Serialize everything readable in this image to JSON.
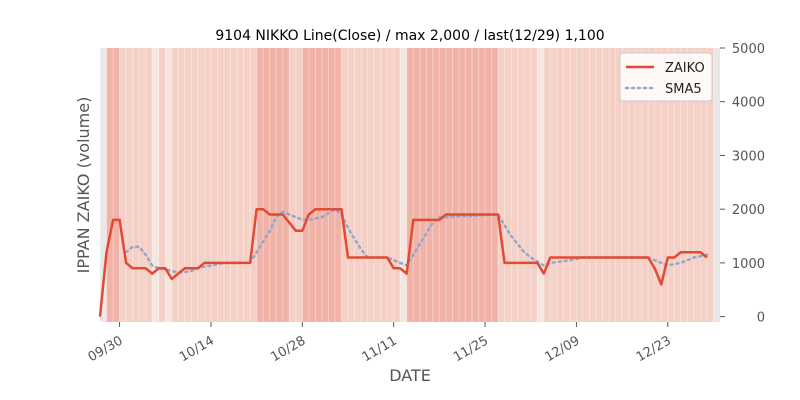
{
  "chart_data": {
    "type": "line",
    "title": "9104 NIKKO Line(Close) / max 2,000 / last(12/29) 1,100",
    "xlabel": "DATE",
    "ylabel": "IPPAN ZAIKO (volume)",
    "ylim": [
      -100,
      5000
    ],
    "yticks": [
      0,
      1000,
      2000,
      3000,
      4000,
      5000
    ],
    "x_start": "2019-09-27",
    "x_end": "2019-12-31",
    "xticks": [
      {
        "date": "2019-09-30",
        "label": "09/30"
      },
      {
        "date": "2019-10-14",
        "label": "10/14"
      },
      {
        "date": "2019-10-28",
        "label": "10/28"
      },
      {
        "date": "2019-11-11",
        "label": "11/11"
      },
      {
        "date": "2019-11-25",
        "label": "11/25"
      },
      {
        "date": "2019-12-09",
        "label": "12/09"
      },
      {
        "date": "2019-12-23",
        "label": "12/23"
      }
    ],
    "grid": false,
    "legend_position": "top-right",
    "series": [
      {
        "name": "ZAIKO",
        "style": "solid",
        "color": "#e24a33",
        "points": [
          [
            "2019-09-27",
            0
          ],
          [
            "2019-09-28",
            1200
          ],
          [
            "2019-09-29",
            1800
          ],
          [
            "2019-09-30",
            1800
          ],
          [
            "2019-10-01",
            1000
          ],
          [
            "2019-10-02",
            900
          ],
          [
            "2019-10-03",
            900
          ],
          [
            "2019-10-04",
            900
          ],
          [
            "2019-10-05",
            800
          ],
          [
            "2019-10-06",
            900
          ],
          [
            "2019-10-07",
            900
          ],
          [
            "2019-10-08",
            700
          ],
          [
            "2019-10-09",
            800
          ],
          [
            "2019-10-10",
            900
          ],
          [
            "2019-10-11",
            900
          ],
          [
            "2019-10-12",
            900
          ],
          [
            "2019-10-13",
            1000
          ],
          [
            "2019-10-20",
            1000
          ],
          [
            "2019-10-21",
            2000
          ],
          [
            "2019-10-22",
            2000
          ],
          [
            "2019-10-23",
            1900
          ],
          [
            "2019-10-25",
            1900
          ],
          [
            "2019-10-27",
            1600
          ],
          [
            "2019-10-28",
            1600
          ],
          [
            "2019-10-29",
            1900
          ],
          [
            "2019-10-30",
            2000
          ],
          [
            "2019-11-03",
            2000
          ],
          [
            "2019-11-04",
            1100
          ],
          [
            "2019-11-10",
            1100
          ],
          [
            "2019-11-11",
            900
          ],
          [
            "2019-11-12",
            900
          ],
          [
            "2019-11-13",
            800
          ],
          [
            "2019-11-14",
            1800
          ],
          [
            "2019-11-18",
            1800
          ],
          [
            "2019-11-19",
            1900
          ],
          [
            "2019-11-27",
            1900
          ],
          [
            "2019-11-28",
            1000
          ],
          [
            "2019-12-03",
            1000
          ],
          [
            "2019-12-04",
            800
          ],
          [
            "2019-12-05",
            1100
          ],
          [
            "2019-12-20",
            1100
          ],
          [
            "2019-12-21",
            900
          ],
          [
            "2019-12-22",
            600
          ],
          [
            "2019-12-23",
            1100
          ],
          [
            "2019-12-24",
            1100
          ],
          [
            "2019-12-25",
            1200
          ],
          [
            "2019-12-27",
            1200
          ],
          [
            "2019-12-28",
            1200
          ],
          [
            "2019-12-29",
            1100
          ]
        ]
      },
      {
        "name": "SMA5",
        "style": "dotted",
        "color": "#92a8cd",
        "points": [
          [
            "2019-10-01",
            1200
          ],
          [
            "2019-10-02",
            1300
          ],
          [
            "2019-10-03",
            1300
          ],
          [
            "2019-10-04",
            1150
          ],
          [
            "2019-10-05",
            950
          ],
          [
            "2019-10-06",
            900
          ],
          [
            "2019-10-07",
            880
          ],
          [
            "2019-10-08",
            850
          ],
          [
            "2019-10-09",
            820
          ],
          [
            "2019-10-10",
            830
          ],
          [
            "2019-10-11",
            850
          ],
          [
            "2019-10-12",
            900
          ],
          [
            "2019-10-13",
            930
          ],
          [
            "2019-10-14",
            950
          ],
          [
            "2019-10-16",
            1000
          ],
          [
            "2019-10-20",
            1000
          ],
          [
            "2019-10-21",
            1200
          ],
          [
            "2019-10-22",
            1400
          ],
          [
            "2019-10-23",
            1600
          ],
          [
            "2019-10-24",
            1850
          ],
          [
            "2019-10-25",
            1950
          ],
          [
            "2019-10-26",
            1900
          ],
          [
            "2019-10-28",
            1800
          ],
          [
            "2019-10-29",
            1800
          ],
          [
            "2019-10-31",
            1850
          ],
          [
            "2019-11-02",
            2000
          ],
          [
            "2019-11-03",
            1900
          ],
          [
            "2019-11-04",
            1650
          ],
          [
            "2019-11-05",
            1450
          ],
          [
            "2019-11-06",
            1250
          ],
          [
            "2019-11-07",
            1100
          ],
          [
            "2019-11-10",
            1100
          ],
          [
            "2019-11-11",
            1050
          ],
          [
            "2019-11-12",
            1000
          ],
          [
            "2019-11-13",
            950
          ],
          [
            "2019-11-14",
            1150
          ],
          [
            "2019-11-15",
            1350
          ],
          [
            "2019-11-16",
            1550
          ],
          [
            "2019-11-17",
            1750
          ],
          [
            "2019-11-18",
            1850
          ],
          [
            "2019-11-19",
            1850
          ],
          [
            "2019-11-27",
            1900
          ],
          [
            "2019-11-28",
            1700
          ],
          [
            "2019-11-29",
            1500
          ],
          [
            "2019-11-30",
            1350
          ],
          [
            "2019-12-01",
            1200
          ],
          [
            "2019-12-02",
            1100
          ],
          [
            "2019-12-04",
            950
          ],
          [
            "2019-12-05",
            1000
          ],
          [
            "2019-12-08",
            1050
          ],
          [
            "2019-12-10",
            1100
          ],
          [
            "2019-12-20",
            1100
          ],
          [
            "2019-12-21",
            1050
          ],
          [
            "2019-12-22",
            1000
          ],
          [
            "2019-12-23",
            950
          ],
          [
            "2019-12-24",
            980
          ],
          [
            "2019-12-25",
            1000
          ],
          [
            "2019-12-27",
            1100
          ],
          [
            "2019-12-29",
            1150
          ]
        ]
      }
    ],
    "shading_colors": {
      "pale": "#f6e6e0",
      "light": "#f4d0c6",
      "strong": "#f1b3a8",
      "gray": "#e8e8e8"
    },
    "shaded_bands": [
      {
        "start": "2019-09-27",
        "end": "2019-09-28",
        "level": "gray"
      },
      {
        "start": "2019-09-28",
        "end": "2019-09-30",
        "level": "strong"
      },
      {
        "start": "2019-09-30",
        "end": "2019-10-05",
        "level": "light"
      },
      {
        "start": "2019-10-05",
        "end": "2019-10-06",
        "level": "pale"
      },
      {
        "start": "2019-10-06",
        "end": "2019-10-07",
        "level": "light"
      },
      {
        "start": "2019-10-07",
        "end": "2019-10-08",
        "level": "pale"
      },
      {
        "start": "2019-10-08",
        "end": "2019-10-21",
        "level": "light"
      },
      {
        "start": "2019-10-21",
        "end": "2019-10-26",
        "level": "strong"
      },
      {
        "start": "2019-10-26",
        "end": "2019-10-28",
        "level": "light"
      },
      {
        "start": "2019-10-28",
        "end": "2019-11-03",
        "level": "strong"
      },
      {
        "start": "2019-11-03",
        "end": "2019-11-12",
        "level": "light"
      },
      {
        "start": "2019-11-12",
        "end": "2019-11-13",
        "level": "pale"
      },
      {
        "start": "2019-11-13",
        "end": "2019-11-27",
        "level": "strong"
      },
      {
        "start": "2019-11-27",
        "end": "2019-12-03",
        "level": "light"
      },
      {
        "start": "2019-12-03",
        "end": "2019-12-04",
        "level": "pale"
      },
      {
        "start": "2019-12-04",
        "end": "2019-12-23",
        "level": "light"
      },
      {
        "start": "2019-12-23",
        "end": "2019-12-30",
        "level": "light"
      },
      {
        "start": "2019-12-30",
        "end": "2019-12-31",
        "level": "gray"
      }
    ]
  }
}
